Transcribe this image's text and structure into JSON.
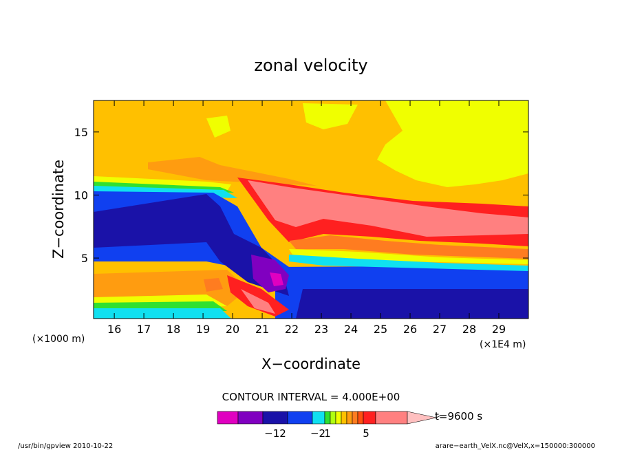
{
  "chart_data": {
    "type": "heatmap",
    "title": "zonal velocity",
    "xlabel": "X−coordinate",
    "ylabel": "Z−coordinate",
    "x_unit_label": "(×1E4 m)",
    "y_unit_label": "(×1000 m)",
    "xlim": [
      15.3,
      30.0
    ],
    "ylim": [
      0.2,
      17.5
    ],
    "x_ticks": [
      "16",
      "17",
      "18",
      "19",
      "20",
      "21",
      "22",
      "23",
      "24",
      "25",
      "26",
      "27",
      "28",
      "29"
    ],
    "y_ticks": [
      "5",
      "10",
      "15"
    ],
    "contour_interval_text": "CONTOUR INTERVAL = 4.000E+00",
    "time_text": "t=9600 s",
    "colorbar": {
      "colors": [
        "#e000c0",
        "#8000c0",
        "#1a12a8",
        "#1040f0",
        "#10e0f0",
        "#30e030",
        "#b0ff10",
        "#f0ff00",
        "#ffc000",
        "#ff9c10",
        "#ff7c20",
        "#ff5010",
        "#ff2020",
        "#ff8080",
        "#ffc0c0"
      ],
      "tick_labels": [
        "−12",
        "−2",
        "1",
        "5"
      ]
    },
    "footer_left": "/usr/bin/gpview   2010-10-22",
    "footer_right": "arare−earth_VelX.nc@VelX,x=150000:300000"
  }
}
